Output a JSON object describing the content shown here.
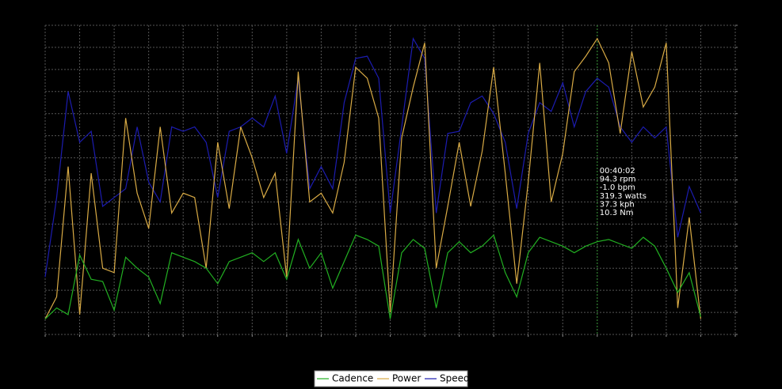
{
  "chart_data": {
    "type": "line",
    "x": [
      0,
      1,
      2,
      3,
      4,
      5,
      6,
      7,
      8,
      9,
      10,
      11,
      12,
      13,
      14,
      15,
      16,
      17,
      18,
      19,
      20,
      21,
      22,
      23,
      24,
      25,
      26,
      27,
      28,
      29,
      30,
      31,
      32,
      33,
      34,
      35,
      36,
      37,
      38,
      39,
      40,
      41,
      42,
      43,
      44,
      45,
      46,
      47,
      48,
      49,
      50,
      51,
      52,
      53,
      54,
      55,
      56,
      57
    ],
    "series": [
      {
        "name": "Cadence",
        "color": "#22b022",
        "values": [
          7,
          12,
          9,
          36,
          25,
          24,
          11,
          35,
          30,
          26,
          14,
          37,
          35,
          33,
          30,
          23,
          33,
          35,
          37,
          33,
          37,
          25,
          43,
          30,
          37,
          21,
          33,
          45,
          43,
          40,
          7,
          37,
          43,
          39,
          12,
          37,
          42,
          37,
          40,
          45,
          28,
          17,
          37,
          44,
          42,
          40,
          37,
          40,
          42,
          43,
          41,
          39,
          44,
          40,
          30,
          19,
          28,
          8
        ]
      },
      {
        "name": "Power",
        "color": "#d9ab45",
        "values": [
          7,
          17,
          76,
          9,
          73,
          30,
          28,
          98,
          64,
          48,
          94,
          55,
          64,
          62,
          30,
          87,
          57,
          94,
          80,
          62,
          73,
          26,
          119,
          60,
          64,
          55,
          78,
          121,
          116,
          98,
          10,
          89,
          112,
          132,
          30,
          58,
          87,
          58,
          83,
          121,
          73,
          23,
          69,
          123,
          60,
          82,
          119,
          126,
          134,
          123,
          91,
          128,
          103,
          112,
          132,
          12,
          53,
          7
        ]
      },
      {
        "name": "Speed",
        "color": "#1c1cb0",
        "values": [
          26,
          62,
          110,
          87,
          92,
          58,
          62,
          66,
          94,
          69,
          60,
          94,
          92,
          94,
          87,
          62,
          92,
          94,
          98,
          94,
          108,
          82,
          116,
          66,
          76,
          66,
          105,
          125,
          126,
          116,
          55,
          94,
          134,
          125,
          55,
          91,
          92,
          105,
          108,
          100,
          87,
          57,
          91,
          105,
          101,
          114,
          94,
          110,
          116,
          112,
          94,
          87,
          94,
          89,
          94,
          44,
          67,
          55
        ]
      }
    ],
    "xlim": [
      0,
      60
    ],
    "xticks": [
      0,
      3,
      6,
      9,
      12,
      15,
      18,
      21,
      24,
      27,
      30,
      33,
      36,
      39,
      42,
      45,
      48,
      51,
      54,
      57,
      60
    ],
    "ylim": [
      0,
      140
    ],
    "yticks": [
      0,
      10,
      20,
      30,
      40,
      50,
      60,
      70,
      80,
      90,
      100,
      110,
      120,
      130,
      140
    ],
    "grid": true,
    "cursor_x": 48,
    "tooltip": [
      "00:40:02",
      "94.3 rpm",
      "-1.0 bpm",
      "319.3 watts",
      "37.3 kph",
      "10.3 Nm"
    ]
  }
}
